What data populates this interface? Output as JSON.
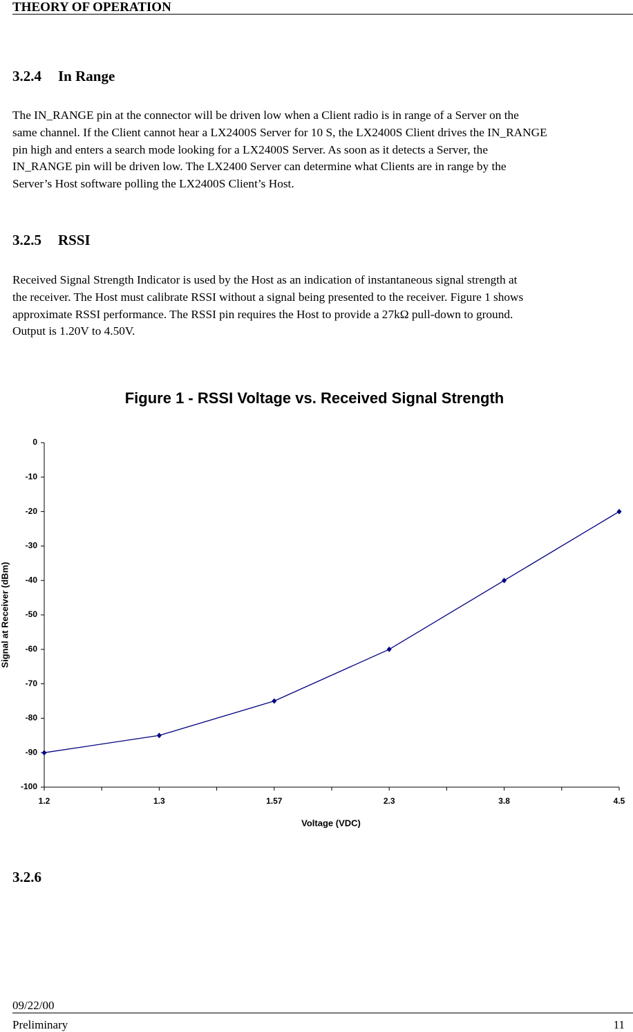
{
  "header": {
    "title": "THEORY OF OPERATION"
  },
  "sections": [
    {
      "number": "3.2.4",
      "title": "In Range",
      "lines": [
        "The IN_RANGE pin at the connector will be driven low when a Client radio is in range of a Server on the",
        "same channel. If the Client cannot hear a LX2400S Server for 10 S, the LX2400S Client drives the IN_RANGE",
        "pin high and enters a search mode looking for a LX2400S Server.  As soon as it detects a Server, the",
        "IN_RANGE pin will be driven low. The LX2400 Server can determine what Clients are in range by the",
        "Server’s Host software polling the LX2400S Client’s Host."
      ]
    },
    {
      "number": "3.2.5",
      "title": "RSSI",
      "lines": [
        "Received Signal Strength Indicator is used by the Host as an indication of instantaneous signal strength at",
        "the receiver.  The Host must calibrate RSSI without a signal being presented to the receiver. Figure 1 shows",
        "approximate RSSI performance. The RSSI pin requires the Host to provide a 27kΩ pull-down to ground.",
        "Output is 1.20V to 4.50V."
      ]
    },
    {
      "number": "3.2.6"
    }
  ],
  "chart_data": {
    "type": "line",
    "title": "Figure 1 - RSSI Voltage vs. Received Signal Strength",
    "x_label": "Voltage (VDC)",
    "y_label": "Signal at Receiver (dBm)",
    "categories": [
      "1.2",
      "1.3",
      "1.57",
      "2.3",
      "3.8",
      "4.5"
    ],
    "series": [
      {
        "color": "#000080",
        "values": [
          -90,
          -85,
          -75,
          -60,
          -40,
          -20
        ]
      }
    ],
    "ylim": [
      -100,
      0
    ],
    "yticks": [
      0,
      -10,
      -20,
      -30,
      -40,
      -50,
      -60,
      -70,
      -80,
      -90,
      -100
    ]
  },
  "footer": {
    "date": "09/22/00",
    "status": "Preliminary",
    "page": "11"
  }
}
